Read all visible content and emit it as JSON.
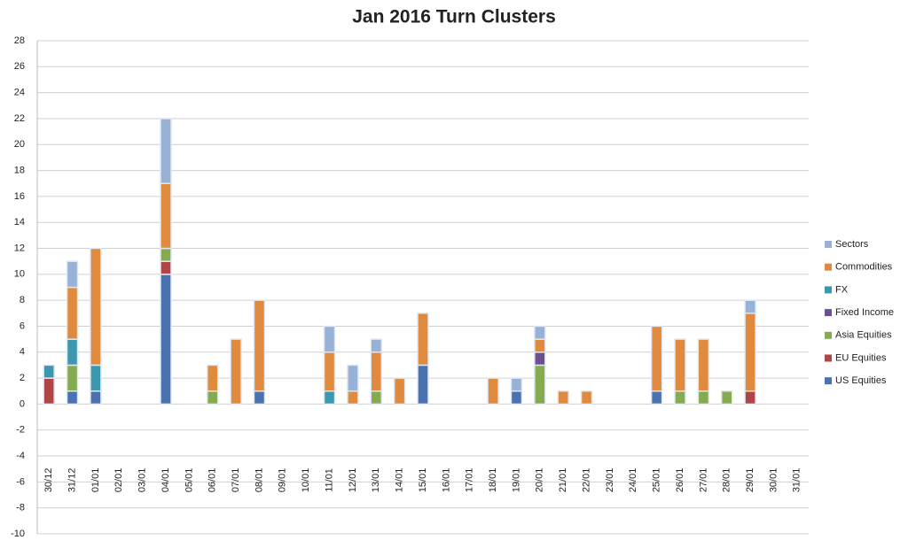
{
  "chart_data": {
    "type": "stacked-bar",
    "title": "Jan 2016 Turn Clusters",
    "categories": [
      "30/12",
      "31/12",
      "01/01",
      "02/01",
      "03/01",
      "04/01",
      "05/01",
      "06/01",
      "07/01",
      "08/01",
      "09/01",
      "10/01",
      "11/01",
      "12/01",
      "13/01",
      "14/01",
      "15/01",
      "16/01",
      "17/01",
      "18/01",
      "19/01",
      "20/01",
      "21/01",
      "22/01",
      "23/01",
      "24/01",
      "25/01",
      "26/01",
      "27/01",
      "28/01",
      "29/01",
      "30/01",
      "31/01"
    ],
    "series": [
      {
        "name": "US Equities",
        "color": "#4a72b0",
        "values": [
          0,
          1,
          1,
          0,
          0,
          10,
          0,
          0,
          0,
          1,
          0,
          0,
          0,
          0,
          0,
          0,
          3,
          0,
          0,
          0,
          1,
          0,
          0,
          0,
          0,
          0,
          1,
          0,
          0,
          0,
          0,
          0,
          0
        ]
      },
      {
        "name": "EU Equities",
        "color": "#b04545",
        "values": [
          2,
          0,
          0,
          0,
          0,
          1,
          0,
          0,
          0,
          0,
          0,
          0,
          0,
          0,
          0,
          0,
          0,
          0,
          0,
          0,
          0,
          0,
          0,
          0,
          0,
          0,
          0,
          0,
          0,
          0,
          1,
          0,
          0
        ]
      },
      {
        "name": "Asia Equities",
        "color": "#84ab4e",
        "values": [
          0,
          2,
          0,
          0,
          0,
          1,
          0,
          1,
          0,
          0,
          0,
          0,
          0,
          0,
          1,
          0,
          0,
          0,
          0,
          0,
          0,
          3,
          0,
          0,
          0,
          0,
          0,
          1,
          1,
          1,
          0,
          0,
          0
        ]
      },
      {
        "name": "Fixed Income",
        "color": "#6b508f",
        "values": [
          0,
          0,
          0,
          0,
          0,
          0,
          0,
          0,
          0,
          0,
          0,
          0,
          0,
          0,
          0,
          0,
          0,
          0,
          0,
          0,
          0,
          1,
          0,
          0,
          0,
          0,
          0,
          0,
          0,
          0,
          0,
          0,
          0
        ]
      },
      {
        "name": "FX",
        "color": "#3b98ae",
        "values": [
          1,
          2,
          2,
          0,
          0,
          0,
          0,
          0,
          0,
          0,
          0,
          0,
          1,
          0,
          0,
          0,
          0,
          0,
          0,
          0,
          0,
          0,
          0,
          0,
          0,
          0,
          0,
          0,
          0,
          0,
          0,
          0,
          0
        ]
      },
      {
        "name": "Commodities",
        "color": "#e08a3e",
        "values": [
          0,
          4,
          9,
          0,
          0,
          5,
          0,
          2,
          5,
          7,
          0,
          0,
          3,
          1,
          3,
          2,
          4,
          0,
          0,
          2,
          0,
          1,
          1,
          1,
          0,
          0,
          5,
          4,
          4,
          0,
          6,
          0,
          0
        ]
      },
      {
        "name": "Sectors",
        "color": "#98b1d7",
        "values": [
          0,
          2,
          0,
          0,
          0,
          5,
          0,
          0,
          0,
          0,
          0,
          0,
          2,
          2,
          1,
          0,
          0,
          0,
          0,
          0,
          1,
          1,
          0,
          0,
          0,
          0,
          0,
          0,
          0,
          0,
          1,
          0,
          0
        ]
      }
    ],
    "ylim": [
      -10,
      28
    ],
    "yticks": [
      -10,
      -8,
      -6,
      -4,
      -2,
      0,
      2,
      4,
      6,
      8,
      10,
      12,
      14,
      16,
      18,
      20,
      22,
      24,
      26,
      28
    ],
    "grid": true,
    "legend": "right"
  }
}
